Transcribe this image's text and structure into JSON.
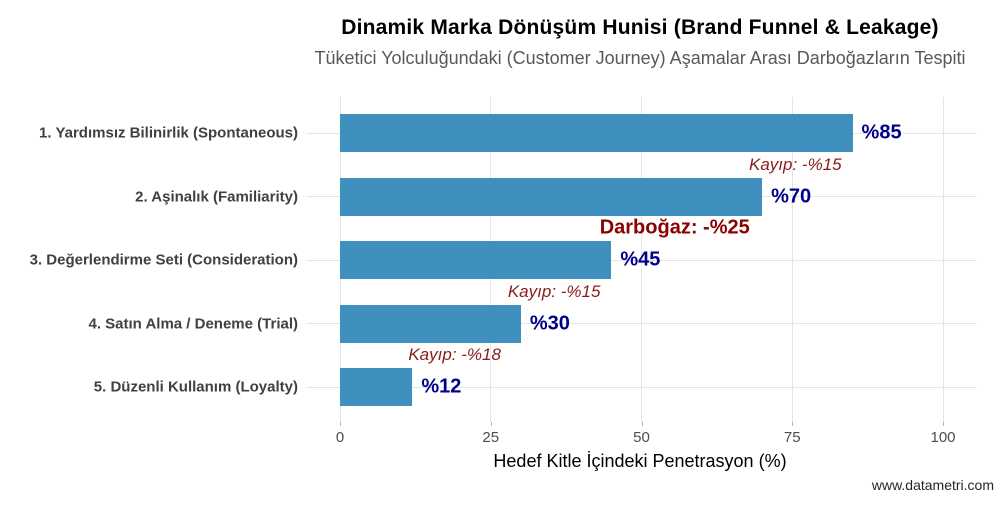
{
  "chart_data": {
    "type": "bar",
    "orientation": "horizontal",
    "title": "Dinamik Marka Dönüşüm Hunisi (Brand Funnel & Leakage)",
    "subtitle": "Tüketici Yolculuğundaki (Customer Journey) Aşamalar Arası Darboğazların Tespiti",
    "xlabel": "Hedef Kitle İçindeki Penetrasyon (%)",
    "caption": "www.datametri.com",
    "xlim": [
      0,
      100
    ],
    "x_ticks": [
      "0",
      "25",
      "50",
      "75",
      "100"
    ],
    "x_tick_values": [
      0,
      25,
      50,
      75,
      100
    ],
    "grid": "major-only, light gray, white panel",
    "legend": "none",
    "categories": [
      "1. Yardımsız Bilinirlik (Spontaneous)",
      "2. Aşinalık (Familiarity)",
      "3. Değerlendirme Seti (Consideration)",
      "4. Satın Alma / Deneme (Trial)",
      "5. Düzenli Kullanım (Loyalty)"
    ],
    "values": [
      85,
      70,
      45,
      30,
      12
    ],
    "value_labels": [
      "%85",
      "%70",
      "%45",
      "%30",
      "%12"
    ],
    "loss_annotations": [
      {
        "between": [
          1,
          2
        ],
        "label": "Kayıp: -%15",
        "emphasis": false
      },
      {
        "between": [
          2,
          3
        ],
        "label": "Darboğaz: -%25",
        "emphasis": true
      },
      {
        "between": [
          3,
          4
        ],
        "label": "Kayıp: -%15",
        "emphasis": false
      },
      {
        "between": [
          4,
          5
        ],
        "label": "Kayıp: -%18",
        "emphasis": false
      }
    ],
    "colors": {
      "bar": "#4090BF",
      "value_label": "#00008B",
      "loss_label": "#8B1A1A",
      "bottleneck_label": "#8B0000",
      "gridline": "#E5E5E5",
      "category_label": "#404040",
      "tick_label": "#4D4D4D",
      "title": "#000000",
      "subtitle": "#595959",
      "caption": "#262626"
    }
  }
}
